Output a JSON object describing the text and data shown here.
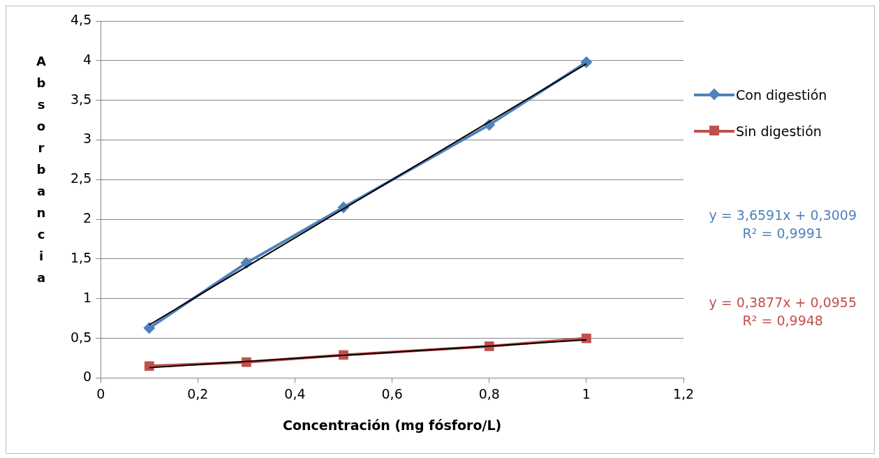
{
  "chart_data": {
    "type": "scatter",
    "xlabel": "Concentración (mg fósforo/L)",
    "ylabel": "Absorbancia",
    "xlim": [
      0,
      1.2
    ],
    "xticks": [
      {
        "value": 0,
        "label": "0"
      },
      {
        "value": 0.2,
        "label": "0,2"
      },
      {
        "value": 0.4,
        "label": "0,4"
      },
      {
        "value": 0.6,
        "label": "0,6"
      },
      {
        "value": 0.8,
        "label": "0,8"
      },
      {
        "value": 1,
        "label": "1"
      },
      {
        "value": 1.2,
        "label": "1,2"
      }
    ],
    "ylim": [
      0,
      4.5
    ],
    "yticks": [
      {
        "value": 0,
        "label": "0"
      },
      {
        "value": 0.5,
        "label": "0,5"
      },
      {
        "value": 1,
        "label": "1"
      },
      {
        "value": 1.5,
        "label": "1,5"
      },
      {
        "value": 2,
        "label": "2"
      },
      {
        "value": 2.5,
        "label": "2,5"
      },
      {
        "value": 3,
        "label": "3"
      },
      {
        "value": 3.5,
        "label": "3,5"
      },
      {
        "value": 4,
        "label": "4"
      },
      {
        "value": 4.5,
        "label": "4,5"
      }
    ],
    "grid": "y",
    "legend": "right",
    "line_style": "solid",
    "series": [
      {
        "name": "Con digestión",
        "type": "line",
        "marker": "diamond",
        "color": "#4f81bd",
        "x": [
          0.1,
          0.3,
          0.5,
          0.8,
          1
        ],
        "values": [
          0.63,
          1.45,
          2.15,
          3.19,
          3.98
        ]
      },
      {
        "name": "Sin digestión",
        "type": "line",
        "marker": "square",
        "color": "#c0504d",
        "x": [
          0.1,
          0.3,
          0.5,
          0.8,
          1
        ],
        "values": [
          0.15,
          0.2,
          0.29,
          0.4,
          0.5
        ]
      },
      {
        "type": "line",
        "marker": "none",
        "color": "#000000",
        "x": [
          0.1,
          1
        ],
        "values": [
          0.67,
          3.96
        ]
      },
      {
        "type": "line",
        "marker": "none",
        "color": "#000000",
        "x": [
          0.1,
          1
        ],
        "values": [
          0.13,
          0.48
        ]
      }
    ],
    "annotations": [
      "y = 3,6591x + 0,3009\nR² = 0,9991",
      "y = 0,3877x + 0,0955\nR² = 0,9948"
    ]
  }
}
